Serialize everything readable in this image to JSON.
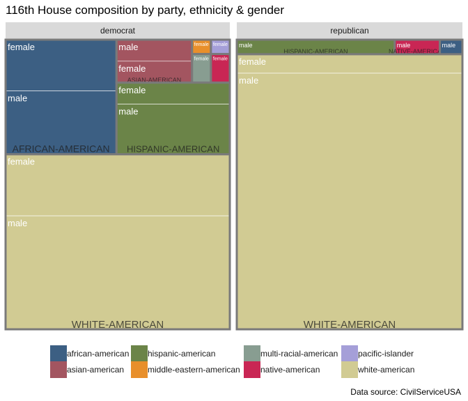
{
  "chart_data": {
    "type": "treemap",
    "title": "116th House composition by party, ethnicity & gender",
    "source": "Data source: CivilServiceUSA",
    "panels": [
      {
        "name": "democrat",
        "groups": [
          {
            "ethnicity": "AFRICAN-AMERICAN",
            "key": "african-american",
            "children": [
              {
                "gender": "female",
                "value": 21
              },
              {
                "gender": "male",
                "value": 26
              }
            ]
          },
          {
            "ethnicity": "HISPANIC-AMERICAN",
            "key": "hispanic-american",
            "children": [
              {
                "gender": "female",
                "value": 9
              },
              {
                "gender": "male",
                "value": 21
              }
            ]
          },
          {
            "ethnicity": "ASIAN-AMERICAN",
            "key": "asian-american",
            "children": [
              {
                "gender": "male",
                "value": 6
              },
              {
                "gender": "female",
                "value": 6
              }
            ]
          },
          {
            "ethnicity": "",
            "key": "middle-eastern-american",
            "children": [
              {
                "gender": "female",
                "value": 1
              }
            ]
          },
          {
            "ethnicity": "",
            "key": "pacific-islander",
            "children": [
              {
                "gender": "female",
                "value": 1
              }
            ]
          },
          {
            "ethnicity": "",
            "key": "multi-racial-american",
            "children": [
              {
                "gender": "female",
                "value": 2
              }
            ]
          },
          {
            "ethnicity": "",
            "key": "native-american",
            "children": [
              {
                "gender": "female",
                "value": 2
              }
            ]
          },
          {
            "ethnicity": "WHITE-AMERICAN",
            "key": "white-american",
            "children": [
              {
                "gender": "female",
                "value": 51
              },
              {
                "gender": "male",
                "value": 94
              }
            ]
          }
        ]
      },
      {
        "name": "republican",
        "groups": [
          {
            "ethnicity": "HISPANIC-AMERICAN",
            "key": "hispanic-american",
            "children": [
              {
                "gender": "male",
                "value": 7
              }
            ]
          },
          {
            "ethnicity": "NATIVE-AMERICAN",
            "key": "native-american",
            "children": [
              {
                "gender": "male",
                "value": 2
              }
            ]
          },
          {
            "ethnicity": "",
            "key": "african-american",
            "children": [
              {
                "gender": "male",
                "value": 1
              }
            ]
          },
          {
            "ethnicity": "WHITE-AMERICAN",
            "key": "white-american",
            "children": [
              {
                "gender": "female",
                "value": 13
              },
              {
                "gender": "male",
                "value": 176
              }
            ]
          }
        ]
      }
    ],
    "legend": {
      "position": "bottom",
      "entries": [
        {
          "key": "african-american",
          "label": "african-american",
          "color": "#3c5f83"
        },
        {
          "key": "asian-american",
          "label": "asian-american",
          "color": "#a35560"
        },
        {
          "key": "hispanic-american",
          "label": "hispanic-american",
          "color": "#6b8448"
        },
        {
          "key": "middle-eastern-american",
          "label": "middle-eastern-american",
          "color": "#e88f2b"
        },
        {
          "key": "multi-racial-american",
          "label": "multi-racial-american",
          "color": "#889d91"
        },
        {
          "key": "native-american",
          "label": "native-american",
          "color": "#c92654"
        },
        {
          "key": "pacific-islander",
          "label": "pacific-islander",
          "color": "#a59fd8"
        },
        {
          "key": "white-american",
          "label": "white-american",
          "color": "#d1cb93"
        }
      ]
    }
  }
}
